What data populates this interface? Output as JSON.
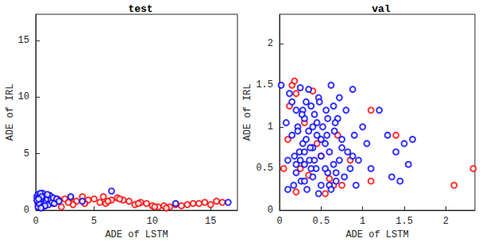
{
  "chart_data": [
    {
      "type": "scatter",
      "title": "test",
      "x_label": "ADE of LSTM",
      "y_label": "ADE of IRL",
      "xlim": [
        0,
        17.3
      ],
      "ylim": [
        0,
        17.3
      ],
      "xticks": [
        0,
        5,
        10,
        15
      ],
      "yticks": [
        0,
        5,
        10,
        15
      ],
      "grid": false,
      "marker": "open_circle",
      "series": [
        {
          "color": "#ff0000",
          "x": [
            0.2,
            0.5,
            1,
            1.5,
            2,
            2.5,
            3,
            3.5,
            4,
            4.5,
            5,
            5.5,
            6,
            6.5,
            7,
            7.5,
            8,
            8.5,
            9,
            9.5,
            10,
            10.5,
            11,
            11.5,
            12,
            12.5,
            13,
            13.5,
            14,
            14.5,
            15,
            15.5,
            16,
            3.2,
            4.2,
            5.8,
            7.2,
            2.2,
            1.2,
            0.8,
            0.3,
            0.6,
            1.8,
            2.8,
            6.2,
            8.8,
            10.2,
            11.2
          ],
          "y": [
            0.5,
            1.0,
            0.8,
            0.6,
            0.9,
            1.0,
            1.1,
            0.8,
            1.2,
            0.9,
            1.0,
            0.7,
            0.6,
            0.9,
            1.1,
            0.9,
            0.8,
            0.5,
            0.7,
            0.6,
            0.4,
            0.3,
            0.4,
            0.3,
            0.5,
            0.4,
            0.5,
            0.6,
            0.6,
            0.7,
            0.5,
            0.8,
            0.7,
            0.5,
            0.6,
            1.2,
            1.0,
            0.3,
            1.3,
            0.4,
            1.1,
            0.7,
            1.0,
            0.7,
            0.8,
            0.6,
            0.3,
            0.2
          ]
        },
        {
          "color": "#0000ff",
          "x": [
            0.1,
            0.15,
            0.2,
            0.25,
            0.3,
            0.35,
            0.4,
            0.45,
            0.5,
            0.55,
            0.6,
            0.7,
            0.8,
            0.9,
            1.0,
            1.1,
            1.2,
            1.3,
            1.4,
            1.5,
            1.6,
            1.8,
            2.0,
            0.2,
            0.3,
            0.4,
            0.5,
            0.6,
            0.8,
            1.0,
            0.1,
            0.25,
            0.45,
            3.0,
            4.0,
            6.5,
            12.0,
            16.5
          ],
          "y": [
            1.2,
            0.8,
            1.4,
            0.5,
            1.0,
            1.3,
            0.7,
            1.1,
            0.4,
            0.9,
            1.5,
            0.6,
            1.2,
            0.8,
            1.0,
            0.5,
            1.3,
            0.9,
            0.7,
            1.1,
            0.6,
            1.0,
            0.8,
            0.3,
            0.6,
            1.5,
            1.2,
            0.3,
            0.4,
            1.4,
            0.9,
            1.0,
            0.2,
            1.2,
            0.8,
            1.7,
            0.6,
            0.7
          ]
        }
      ]
    },
    {
      "type": "scatter",
      "title": "val",
      "x_label": "ADE of LSTM",
      "y_label": "ADE of IRL",
      "xlim": [
        0,
        2.35
      ],
      "ylim": [
        0,
        2.35
      ],
      "xticks": [
        0,
        0.5,
        1,
        1.5,
        2
      ],
      "yticks": [
        0,
        0.5,
        1,
        1.5,
        2
      ],
      "grid": false,
      "marker": "open_circle",
      "series": [
        {
          "color": "#ff0000",
          "x": [
            0.15,
            0.18,
            0.05,
            0.1,
            0.12,
            0.2,
            0.3,
            0.25,
            0.4,
            0.45,
            0.5,
            0.6,
            0.65,
            0.7,
            0.75,
            0.85,
            1.1,
            1.1,
            1.4,
            2.1,
            2.33,
            0.35,
            0.2,
            0.55
          ],
          "y": [
            1.5,
            1.55,
            0.5,
            0.85,
            1.25,
            1.4,
            1.05,
            0.5,
            1.43,
            0.8,
            0.65,
            0.38,
            0.3,
            0.9,
            0.3,
            0.6,
            0.35,
            1.2,
            0.9,
            0.3,
            0.5,
            0.42,
            0.22,
            0.2
          ]
        },
        {
          "color": "#0000ff",
          "x": [
            0.02,
            0.08,
            0.1,
            0.12,
            0.15,
            0.17,
            0.2,
            0.2,
            0.22,
            0.24,
            0.25,
            0.26,
            0.28,
            0.3,
            0.3,
            0.32,
            0.33,
            0.35,
            0.36,
            0.38,
            0.4,
            0.4,
            0.42,
            0.44,
            0.45,
            0.47,
            0.5,
            0.5,
            0.52,
            0.55,
            0.56,
            0.58,
            0.6,
            0.62,
            0.65,
            0.66,
            0.68,
            0.7,
            0.72,
            0.75,
            0.78,
            0.8,
            0.82,
            0.85,
            0.88,
            0.9,
            0.92,
            0.95,
            1.0,
            1.05,
            1.1,
            1.2,
            1.3,
            1.35,
            1.4,
            1.45,
            1.5,
            1.55,
            1.6,
            0.15,
            0.25,
            0.35,
            0.45,
            0.55,
            0.65,
            0.75,
            0.3,
            0.4,
            0.5,
            0.6,
            0.2,
            0.3,
            0.1,
            0.28,
            0.38,
            0.48,
            0.58,
            0.68,
            0.88,
            0.22,
            0.32,
            0.42,
            0.62,
            0.72,
            0.18,
            0.27,
            0.37,
            0.47,
            0.57,
            0.67
          ],
          "y": [
            1.5,
            1.05,
            0.6,
            1.4,
            0.9,
            0.3,
            1.2,
            0.45,
            1.0,
            0.7,
            1.47,
            0.35,
            0.8,
            1.1,
            0.55,
            1.3,
            0.25,
            0.95,
            0.6,
            1.25,
            0.75,
            0.4,
            1.15,
            0.5,
            0.9,
            1.35,
            0.65,
            0.3,
            1.0,
            0.8,
            1.2,
            0.45,
            0.7,
            1.5,
            0.55,
            0.95,
            0.35,
            1.1,
            0.6,
            0.85,
            0.4,
            1.2,
            0.7,
            0.5,
            1.45,
            0.9,
            0.3,
            0.6,
            1.0,
            0.8,
            0.5,
            1.2,
            0.9,
            0.4,
            0.7,
            0.35,
            0.8,
            0.55,
            0.85,
            1.3,
            0.6,
            1.45,
            1.05,
            0.5,
            1.25,
            0.75,
            0.35,
            1.0,
            0.85,
            0.3,
            0.55,
            0.7,
            0.25,
            1.2,
            0.5,
            1.3,
            1.1,
            0.45,
            0.65,
            0.95,
            0.85,
            0.6,
            0.25,
            1.35,
            0.65,
            1.15,
            0.75,
            0.2,
            0.9,
            1.05
          ]
        }
      ]
    }
  ]
}
